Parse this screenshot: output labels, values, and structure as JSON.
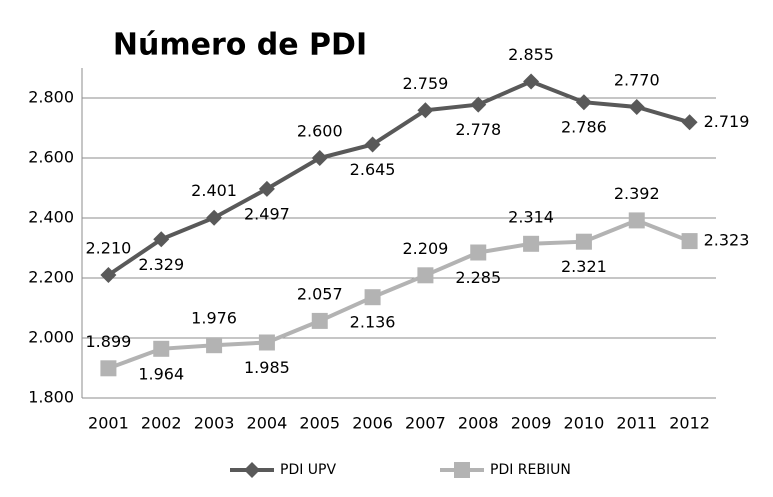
{
  "chart_data": {
    "type": "line",
    "title": "Número de PDI",
    "categories": [
      "2001",
      "2002",
      "2003",
      "2004",
      "2005",
      "2006",
      "2007",
      "2008",
      "2009",
      "2010",
      "2011",
      "2012"
    ],
    "series": [
      {
        "name": "PDI UPV",
        "color": "#595959",
        "marker": "diamond",
        "values": [
          2210,
          2329,
          2401,
          2497,
          2600,
          2645,
          2759,
          2778,
          2855,
          2786,
          2770,
          2719
        ],
        "value_labels": [
          "2.210",
          "2.329",
          "2.401",
          "2.497",
          "2.600",
          "2.645",
          "2.759",
          "2.778",
          "2.855",
          "2.786",
          "2.770",
          "2.719"
        ]
      },
      {
        "name": "PDI REBIUN",
        "color": "#b3b3b3",
        "marker": "square",
        "values": [
          1899,
          1964,
          1976,
          1985,
          2057,
          2136,
          2209,
          2285,
          2314,
          2321,
          2392,
          2323
        ],
        "value_labels": [
          "1.899",
          "1.964",
          "1.976",
          "1.985",
          "2.057",
          "2.136",
          "2.209",
          "2.285",
          "2.314",
          "2.321",
          "2.392",
          "2.323"
        ]
      }
    ],
    "ylim": [
      1800,
      2900
    ],
    "yticks": [
      {
        "value": 1800,
        "label": "1.800"
      },
      {
        "value": 2000,
        "label": "2.000"
      },
      {
        "value": 2200,
        "label": "2.200"
      },
      {
        "value": 2400,
        "label": "2.400"
      },
      {
        "value": 2600,
        "label": "2.600"
      },
      {
        "value": 2800,
        "label": "2.800"
      }
    ],
    "grid": true,
    "legend": "bottom"
  }
}
